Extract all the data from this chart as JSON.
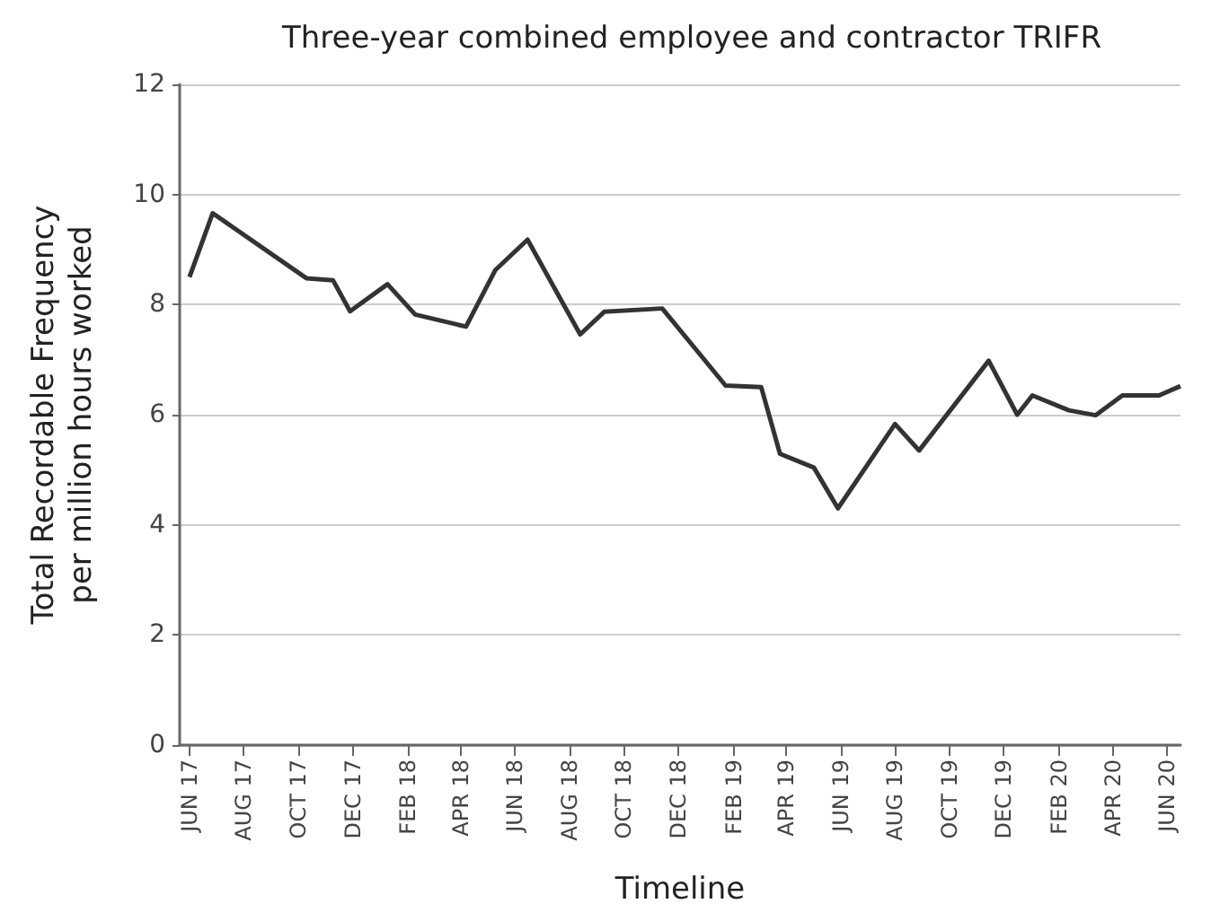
{
  "chart_data": {
    "type": "line",
    "title": "Three-year combined employee and contractor TRIFR",
    "xlabel": "Timeline",
    "ylabel": "Total Recordable Frequency\nper million hours worked",
    "x": [
      "2017-06-01",
      "2017-06-27",
      "2017-10-10",
      "2017-11-09",
      "2017-11-28",
      "2018-01-09",
      "2018-02-09",
      "2018-04-07",
      "2018-05-10",
      "2018-06-15",
      "2018-08-13",
      "2018-09-09",
      "2018-11-13",
      "2019-01-23",
      "2019-03-04",
      "2019-03-25",
      "2019-05-02",
      "2019-05-29",
      "2019-08-01",
      "2019-08-28",
      "2019-11-14",
      "2019-12-16",
      "2020-01-02",
      "2020-02-12",
      "2020-03-13",
      "2020-04-12",
      "2020-05-23",
      "2020-06-16"
    ],
    "series": [
      {
        "color": "#333333",
        "values": [
          8.5,
          9.66,
          8.48,
          8.44,
          7.88,
          8.37,
          7.82,
          7.6,
          8.63,
          9.18,
          7.46,
          7.87,
          7.93,
          6.53,
          6.5,
          5.29,
          5.04,
          4.3,
          5.83,
          5.35,
          6.98,
          6.0,
          6.35,
          6.08,
          5.99,
          6.35,
          6.35,
          6.52
        ]
      }
    ],
    "xlim": [
      "2017-05-21",
      "2020-06-16"
    ],
    "xticks": [
      {
        "value": "2017-06",
        "label": "JUN 17"
      },
      {
        "value": "2017-08",
        "label": "AUG 17"
      },
      {
        "value": "2017-10",
        "label": "OCT 17"
      },
      {
        "value": "2017-12",
        "label": "DEC 17"
      },
      {
        "value": "2018-02",
        "label": "FEB 18"
      },
      {
        "value": "2018-04",
        "label": "APR 18"
      },
      {
        "value": "2018-06",
        "label": "JUN 18"
      },
      {
        "value": "2018-08",
        "label": "AUG 18"
      },
      {
        "value": "2018-10",
        "label": "OCT 18"
      },
      {
        "value": "2018-12",
        "label": "DEC 18"
      },
      {
        "value": "2019-02",
        "label": "FEB 19"
      },
      {
        "value": "2019-04",
        "label": "APR 19"
      },
      {
        "value": "2019-06",
        "label": "JUN 19"
      },
      {
        "value": "2019-08",
        "label": "AUG 19"
      },
      {
        "value": "2019-10",
        "label": "OCT 19"
      },
      {
        "value": "2019-12",
        "label": "DEC 19"
      },
      {
        "value": "2020-02",
        "label": "FEB 20"
      },
      {
        "value": "2020-04",
        "label": "APR 20"
      },
      {
        "value": "2020-06",
        "label": "JUN 20"
      }
    ],
    "ylim": [
      0,
      12
    ],
    "yticks": [
      0,
      2,
      4,
      6,
      8,
      10,
      12
    ],
    "grid": "y",
    "marker": "none",
    "line_style": "solid"
  }
}
